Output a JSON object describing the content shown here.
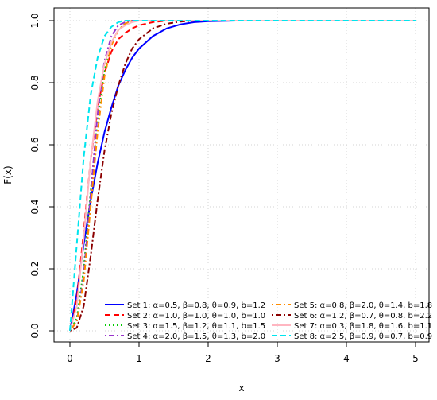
{
  "chart_data": {
    "type": "line",
    "title": "",
    "xlabel": "x",
    "ylabel": "F(x)",
    "xlim": [
      0,
      5
    ],
    "ylim": [
      0,
      1.0
    ],
    "x_ticks": [
      "0",
      "1",
      "2",
      "3",
      "4",
      "5"
    ],
    "y_ticks": [
      "0.0",
      "0.2",
      "0.4",
      "0.6",
      "0.8",
      "1.0"
    ],
    "grid": true,
    "legend_position": "bottom-right",
    "x": [
      0,
      0.1,
      0.2,
      0.3,
      0.4,
      0.5,
      0.6,
      0.7,
      0.8,
      0.9,
      1.0,
      1.2,
      1.4,
      1.6,
      1.8,
      2.0,
      2.2,
      2.4,
      2.6,
      3.0,
      4.0,
      5.0
    ],
    "series": [
      {
        "name": "Set 1: α=0.5, β=0.8, θ=0.9, b=1.2",
        "color": "#0000ff",
        "dash": "solid",
        "values": [
          0,
          0.12,
          0.28,
          0.42,
          0.54,
          0.64,
          0.72,
          0.79,
          0.84,
          0.88,
          0.91,
          0.95,
          0.975,
          0.988,
          0.995,
          0.998,
          0.999,
          1.0,
          1.0,
          1.0,
          1.0,
          1.0
        ]
      },
      {
        "name": "Set 2: α=1.0, β=1.0, θ=1.0, b=1.0",
        "color": "#ff0000",
        "dash": "dashed",
        "values": [
          0,
          0.1,
          0.32,
          0.55,
          0.72,
          0.83,
          0.9,
          0.94,
          0.96,
          0.975,
          0.985,
          0.995,
          1.0,
          1.0,
          1.0,
          1.0,
          1.0,
          1.0,
          1.0,
          1.0,
          1.0,
          1.0
        ]
      },
      {
        "name": "Set 3: α=1.5, β=1.2, θ=1.1, b=1.5",
        "color": "#00cc00",
        "dash": "dotted",
        "values": [
          0,
          0.04,
          0.2,
          0.45,
          0.68,
          0.84,
          0.93,
          0.97,
          0.99,
          1.0,
          1.0,
          1.0,
          1.0,
          1.0,
          1.0,
          1.0,
          1.0,
          1.0,
          1.0,
          1.0,
          1.0,
          1.0
        ]
      },
      {
        "name": "Set 4: α=2.0, β=1.5, θ=1.3, b=2.0",
        "color": "#9932cc",
        "dash": "dotdash",
        "values": [
          0,
          0.03,
          0.18,
          0.44,
          0.7,
          0.87,
          0.95,
          0.985,
          0.995,
          1.0,
          1.0,
          1.0,
          1.0,
          1.0,
          1.0,
          1.0,
          1.0,
          1.0,
          1.0,
          1.0,
          1.0,
          1.0
        ]
      },
      {
        "name": "Set 5: α=0.8, β=2.0, θ=1.4, b=1.8",
        "color": "#ff8c00",
        "dash": "dotdash",
        "values": [
          0,
          0.03,
          0.16,
          0.4,
          0.64,
          0.82,
          0.92,
          0.97,
          0.99,
          1.0,
          1.0,
          1.0,
          1.0,
          1.0,
          1.0,
          1.0,
          1.0,
          1.0,
          1.0,
          1.0,
          1.0,
          1.0
        ]
      },
      {
        "name": "Set 6: α=1.2, β=0.7, θ=0.8, b=2.2",
        "color": "#8b0000",
        "dash": "dotdash",
        "values": [
          0,
          0.01,
          0.08,
          0.24,
          0.42,
          0.58,
          0.7,
          0.79,
          0.86,
          0.91,
          0.94,
          0.975,
          0.99,
          0.997,
          1.0,
          1.0,
          1.0,
          1.0,
          1.0,
          1.0,
          1.0,
          1.0
        ]
      },
      {
        "name": "Set 7: α=0.3, β=1.8, θ=1.6, b=1.1",
        "color": "#ffb6c1",
        "dash": "solid",
        "values": [
          0,
          0.08,
          0.3,
          0.55,
          0.74,
          0.86,
          0.93,
          0.97,
          0.985,
          0.995,
          1.0,
          1.0,
          1.0,
          1.0,
          1.0,
          1.0,
          1.0,
          1.0,
          1.0,
          1.0,
          1.0,
          1.0
        ]
      },
      {
        "name": "Set 8: α=2.5, β=0.9, θ=0.7, b=0.9",
        "color": "#00e5ee",
        "dash": "dashed",
        "values": [
          0,
          0.28,
          0.56,
          0.76,
          0.88,
          0.95,
          0.98,
          0.995,
          1.0,
          1.0,
          1.0,
          1.0,
          1.0,
          1.0,
          1.0,
          1.0,
          1.0,
          1.0,
          1.0,
          1.0,
          1.0,
          1.0
        ]
      }
    ]
  }
}
